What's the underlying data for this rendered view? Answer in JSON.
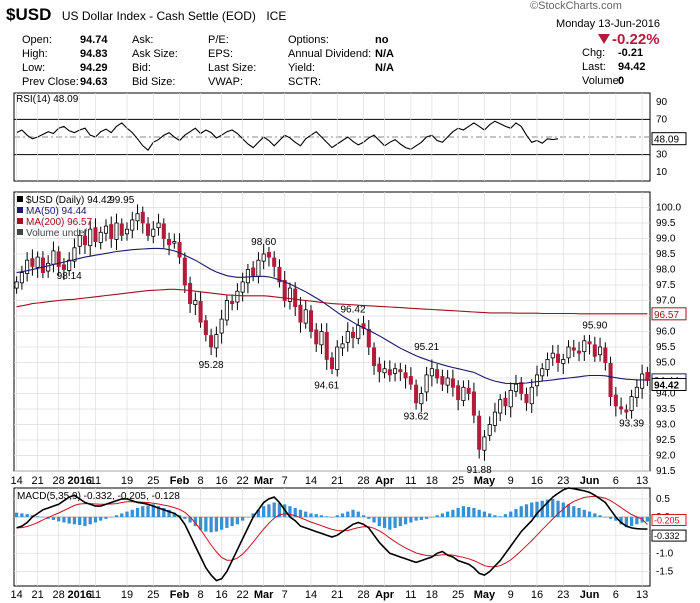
{
  "watermark": "©StockCharts.com",
  "header": {
    "ticker": "$USD",
    "description": "US Dollar Index - Cash Settle (EOD)",
    "exchange": "ICE",
    "date": "Monday  13-Jun-2016",
    "change_pct": "-0.22%",
    "quote": [
      {
        "label": "Open:",
        "value": "94.74"
      },
      {
        "label": "High:",
        "value": "94.83"
      },
      {
        "label": "Low:",
        "value": "94.29"
      },
      {
        "label": "Prev Close:",
        "value": "94.63"
      },
      {
        "label": "Ask:",
        "value": ""
      },
      {
        "label": "Ask Size:",
        "value": ""
      },
      {
        "label": "Bid:",
        "value": ""
      },
      {
        "label": "Bid Size:",
        "value": ""
      },
      {
        "label": "P/E:",
        "value": ""
      },
      {
        "label": "EPS:",
        "value": ""
      },
      {
        "label": "Last Size:",
        "value": ""
      },
      {
        "label": "VWAP:",
        "value": ""
      },
      {
        "label": "Options:",
        "value": "no"
      },
      {
        "label": "Annual Dividend:",
        "value": "N/A"
      },
      {
        "label": "Yield:",
        "value": "N/A"
      },
      {
        "label": "SCTR:",
        "value": ""
      },
      {
        "label": "Chg:",
        "value": "-0.21"
      },
      {
        "label": "Last:",
        "value": "94.42"
      },
      {
        "label": "Volume:",
        "value": "0"
      }
    ]
  },
  "colors": {
    "up": "#ffffff",
    "down": "#b11c3a",
    "ma50": "#1a1a6e",
    "ma200": "#a01020",
    "rsi": "#000000",
    "macd": "#000000",
    "signal": "#d01020",
    "hist": "#3a8fd0",
    "grid": "#dddddd",
    "dark": "#000000"
  },
  "chart_data": [
    {
      "type": "line",
      "title": "RSI(14) 48.09",
      "y_ticks": [
        90,
        70,
        50,
        30,
        10
      ],
      "ylim": [
        0,
        100
      ],
      "last_label": "48.09",
      "values": [
        55,
        58,
        52,
        48,
        50,
        53,
        56,
        54,
        60,
        62,
        57,
        55,
        58,
        60,
        52,
        50,
        56,
        59,
        55,
        62,
        66,
        60,
        55,
        48,
        40,
        35,
        44,
        47,
        52,
        55,
        50,
        46,
        52,
        56,
        60,
        54,
        58,
        55,
        49,
        52,
        56,
        58,
        54,
        48,
        42,
        38,
        44,
        50,
        46,
        40,
        46,
        52,
        49,
        44,
        40,
        48,
        52,
        56,
        50,
        44,
        38,
        42,
        46,
        50,
        45,
        41,
        44,
        49,
        52,
        46,
        40,
        44,
        47,
        42,
        38,
        36,
        40,
        44,
        50,
        52,
        46,
        44,
        50,
        56,
        60,
        58,
        62,
        66,
        62,
        58,
        64,
        68,
        65,
        62,
        60,
        66,
        62,
        52,
        44,
        46,
        43,
        48,
        47,
        48
      ]
    },
    {
      "type": "candlestick",
      "legend": [
        "$USD (Daily) 94.42",
        "MA(50) 94.44",
        "MA(200) 96.57",
        "Volume undef"
      ],
      "ylim": [
        91.5,
        100.5
      ],
      "y_ticks": [
        100.0,
        99.5,
        99.0,
        98.5,
        98.0,
        97.5,
        97.0,
        96.5,
        96.0,
        95.5,
        95.0,
        94.5,
        94.0,
        93.5,
        93.0,
        92.5,
        92.0,
        91.5
      ],
      "x_ticks": [
        "14",
        "21",
        "28",
        "2016",
        "11",
        "19",
        "25",
        "Feb",
        "8",
        "16",
        "22",
        "Mar",
        "7",
        "14",
        "21",
        "28",
        "Apr",
        "11",
        "18",
        "25",
        "May",
        "9",
        "16",
        "23",
        "Jun",
        "6",
        "13"
      ],
      "closes": [
        97.6,
        97.9,
        98.3,
        98.1,
        98.4,
        97.9,
        98.2,
        98.6,
        98.1,
        98.0,
        98.3,
        98.7,
        99.1,
        98.8,
        99.3,
        98.9,
        99.2,
        99.4,
        99.0,
        99.5,
        99.1,
        99.3,
        99.6,
        99.8,
        99.5,
        99.1,
        99.3,
        99.5,
        99.0,
        98.8,
        98.9,
        98.4,
        97.5,
        96.9,
        97.0,
        96.3,
        95.9,
        95.5,
        95.9,
        96.4,
        97.0,
        96.9,
        97.3,
        97.6,
        98.0,
        97.8,
        98.3,
        98.5,
        98.4,
        98.1,
        97.6,
        97.0,
        97.4,
        96.8,
        96.3,
        96.7,
        96.0,
        95.6,
        96.0,
        95.1,
        94.8,
        95.5,
        95.6,
        96.0,
        95.8,
        96.2,
        96.1,
        95.5,
        94.9,
        94.7,
        94.8,
        94.6,
        94.8,
        94.7,
        94.5,
        94.3,
        93.7,
        94.0,
        94.6,
        94.8,
        94.5,
        94.3,
        94.5,
        94.2,
        93.8,
        94.2,
        94.0,
        93.3,
        92.2,
        92.6,
        93.0,
        93.4,
        93.8,
        93.6,
        94.1,
        94.3,
        94.0,
        93.7,
        94.2,
        94.6,
        94.8,
        95.1,
        95.3,
        95.0,
        95.1,
        95.5,
        95.4,
        95.3,
        95.7,
        95.6,
        95.2,
        95.5,
        95.0,
        93.9,
        93.6,
        93.5,
        93.4,
        93.9,
        94.2,
        94.63,
        94.42
      ],
      "ma50": [
        97.9,
        97.93,
        97.96,
        98.0,
        98.04,
        98.08,
        98.12,
        98.16,
        98.2,
        98.24,
        98.28,
        98.32,
        98.36,
        98.4,
        98.43,
        98.46,
        98.49,
        98.52,
        98.55,
        98.58,
        98.6,
        98.62,
        98.64,
        98.65,
        98.66,
        98.67,
        98.68,
        98.68,
        98.67,
        98.64,
        98.6,
        98.54,
        98.46,
        98.38,
        98.3,
        98.2,
        98.1,
        98.0,
        97.92,
        97.86,
        97.8,
        97.77,
        97.75,
        97.75,
        97.76,
        97.77,
        97.78,
        97.78,
        97.76,
        97.72,
        97.66,
        97.6,
        97.53,
        97.45,
        97.36,
        97.28,
        97.18,
        97.08,
        96.98,
        96.86,
        96.74,
        96.62,
        96.5,
        96.4,
        96.3,
        96.2,
        96.12,
        96.04,
        95.95,
        95.86,
        95.76,
        95.66,
        95.56,
        95.46,
        95.38,
        95.3,
        95.22,
        95.15,
        95.09,
        95.03,
        94.98,
        94.93,
        94.88,
        94.84,
        94.8,
        94.76,
        94.72,
        94.68,
        94.6,
        94.52,
        94.45,
        94.4,
        94.36,
        94.33,
        94.32,
        94.32,
        94.33,
        94.34,
        94.36,
        94.38,
        94.4,
        94.42,
        94.44,
        94.46,
        94.48,
        94.5,
        94.52,
        94.54,
        94.56,
        94.58,
        94.58,
        94.58,
        94.57,
        94.54,
        94.51,
        94.48,
        94.46,
        94.45,
        94.44,
        94.44,
        94.44
      ],
      "ma200": [
        96.8,
        96.83,
        96.86,
        96.9,
        96.92,
        96.94,
        96.96,
        96.98,
        97.0,
        97.02,
        97.03,
        97.04,
        97.06,
        97.08,
        97.1,
        97.12,
        97.14,
        97.16,
        97.18,
        97.2,
        97.22,
        97.24,
        97.26,
        97.28,
        97.3,
        97.32,
        97.33,
        97.34,
        97.35,
        97.36,
        97.36,
        97.35,
        97.34,
        97.32,
        97.3,
        97.28,
        97.26,
        97.24,
        97.22,
        97.2,
        97.18,
        97.17,
        97.16,
        97.15,
        97.15,
        97.15,
        97.15,
        97.15,
        97.14,
        97.12,
        97.1,
        97.08,
        97.06,
        97.04,
        97.02,
        97.0,
        96.98,
        96.96,
        96.94,
        96.92,
        96.9,
        96.89,
        96.88,
        96.87,
        96.86,
        96.85,
        96.84,
        96.83,
        96.82,
        96.81,
        96.8,
        96.79,
        96.78,
        96.77,
        96.76,
        96.75,
        96.74,
        96.73,
        96.72,
        96.71,
        96.7,
        96.69,
        96.68,
        96.67,
        96.66,
        96.65,
        96.64,
        96.63,
        96.62,
        96.61,
        96.6,
        96.6,
        96.6,
        96.6,
        96.6,
        96.59,
        96.59,
        96.59,
        96.59,
        96.59,
        96.58,
        96.58,
        96.58,
        96.58,
        96.58,
        96.58,
        96.58,
        96.57,
        96.57,
        96.57,
        96.57,
        96.57,
        96.57,
        96.57,
        96.57,
        96.57,
        96.57,
        96.57,
        96.57,
        96.57,
        96.57
      ],
      "price_labels": [
        {
          "text": "99.95",
          "i": 20,
          "value": 99.95,
          "pos": "above"
        },
        {
          "text": "98.14",
          "i": 10,
          "value": 98.14,
          "pos": "below"
        },
        {
          "text": "98.60",
          "i": 47,
          "value": 98.6,
          "pos": "above"
        },
        {
          "text": "95.28",
          "i": 37,
          "value": 95.28,
          "pos": "below"
        },
        {
          "text": "96.42",
          "i": 64,
          "value": 96.42,
          "pos": "above"
        },
        {
          "text": "94.61",
          "i": 59,
          "value": 94.61,
          "pos": "below"
        },
        {
          "text": "95.21",
          "i": 78,
          "value": 95.21,
          "pos": "above"
        },
        {
          "text": "93.62",
          "i": 76,
          "value": 93.62,
          "pos": "below"
        },
        {
          "text": "91.88",
          "i": 88,
          "value": 91.88,
          "pos": "below"
        },
        {
          "text": "95.90",
          "i": 110,
          "value": 95.9,
          "pos": "above"
        },
        {
          "text": "93.39",
          "i": 117,
          "value": 93.39,
          "pos": "below"
        }
      ],
      "last_labels": [
        "96.57",
        "94.44",
        "94.42"
      ]
    },
    {
      "type": "macd",
      "legend": "MACD(5,35,9) -0.332, -0.205, -0.128",
      "ylim": [
        -1.9,
        0.8
      ],
      "y_ticks": [
        0.5,
        0.0,
        -0.5,
        -1.0,
        -1.5
      ],
      "last_labels": [
        "-0.205",
        "-0.332"
      ],
      "macd": [
        -0.3,
        -0.25,
        -0.15,
        0.0,
        0.1,
        0.2,
        0.25,
        0.3,
        0.35,
        0.45,
        0.55,
        0.6,
        0.5,
        0.4,
        0.35,
        0.3,
        0.3,
        0.35,
        0.4,
        0.45,
        0.5,
        0.5,
        0.45,
        0.4,
        0.38,
        0.35,
        0.3,
        0.25,
        0.2,
        0.15,
        0.1,
        0.0,
        -0.2,
        -0.5,
        -0.8,
        -1.1,
        -1.4,
        -1.6,
        -1.75,
        -1.7,
        -1.5,
        -1.2,
        -0.9,
        -0.6,
        -0.3,
        0.0,
        0.2,
        0.4,
        0.5,
        0.55,
        0.4,
        0.2,
        0.0,
        -0.1,
        -0.25,
        -0.3,
        -0.35,
        -0.4,
        -0.45,
        -0.5,
        -0.55,
        -0.5,
        -0.4,
        -0.3,
        -0.2,
        -0.15,
        -0.2,
        -0.3,
        -0.5,
        -0.7,
        -0.85,
        -1.0,
        -1.05,
        -1.1,
        -1.15,
        -1.2,
        -1.25,
        -1.2,
        -1.15,
        -1.1,
        -1.0,
        -0.95,
        -1.05,
        -1.1,
        -1.2,
        -1.25,
        -1.3,
        -1.4,
        -1.55,
        -1.6,
        -1.5,
        -1.35,
        -1.2,
        -1.0,
        -0.8,
        -0.6,
        -0.4,
        -0.25,
        -0.1,
        0.1,
        0.25,
        0.4,
        0.55,
        0.65,
        0.75,
        0.8,
        0.78,
        0.75,
        0.72,
        0.68,
        0.6,
        0.5,
        0.4,
        0.2,
        0.0,
        -0.15,
        -0.25,
        -0.3,
        -0.32,
        -0.33,
        -0.332
      ],
      "signal": [
        -0.3,
        -0.29,
        -0.26,
        -0.21,
        -0.15,
        -0.08,
        -0.01,
        0.05,
        0.11,
        0.18,
        0.25,
        0.32,
        0.36,
        0.37,
        0.37,
        0.36,
        0.35,
        0.35,
        0.36,
        0.37,
        0.4,
        0.42,
        0.42,
        0.42,
        0.41,
        0.4,
        0.38,
        0.36,
        0.33,
        0.3,
        0.26,
        0.21,
        0.13,
        0.0,
        -0.16,
        -0.35,
        -0.56,
        -0.77,
        -0.96,
        -1.11,
        -1.19,
        -1.19,
        -1.13,
        -1.02,
        -0.87,
        -0.69,
        -0.51,
        -0.33,
        -0.17,
        -0.03,
        0.06,
        0.09,
        0.07,
        0.04,
        -0.02,
        -0.08,
        -0.14,
        -0.19,
        -0.24,
        -0.29,
        -0.34,
        -0.37,
        -0.38,
        -0.37,
        -0.33,
        -0.29,
        -0.27,
        -0.27,
        -0.31,
        -0.38,
        -0.47,
        -0.58,
        -0.68,
        -0.77,
        -0.85,
        -0.92,
        -0.99,
        -1.03,
        -1.06,
        -1.07,
        -1.06,
        -1.04,
        -1.04,
        -1.05,
        -1.08,
        -1.11,
        -1.15,
        -1.2,
        -1.27,
        -1.34,
        -1.37,
        -1.37,
        -1.34,
        -1.27,
        -1.18,
        -1.06,
        -0.93,
        -0.79,
        -0.65,
        -0.5,
        -0.35,
        -0.2,
        -0.05,
        0.09,
        0.22,
        0.34,
        0.43,
        0.49,
        0.54,
        0.56,
        0.57,
        0.55,
        0.52,
        0.45,
        0.36,
        0.26,
        0.16,
        0.07,
        0.0,
        -0.06,
        -0.205
      ],
      "hist": [
        0.12,
        0.1,
        0.08,
        0.05,
        0.02,
        0.0,
        -0.05,
        -0.08,
        -0.12,
        -0.15,
        -0.18,
        -0.2,
        -0.22,
        -0.25,
        -0.2,
        -0.15,
        -0.1,
        -0.05,
        0.0,
        0.05,
        0.1,
        0.15,
        0.2,
        0.25,
        0.3,
        0.32,
        0.35,
        0.3,
        0.25,
        0.2,
        0.12,
        0.05,
        -0.05,
        -0.15,
        -0.25,
        -0.35,
        -0.4,
        -0.42,
        -0.4,
        -0.35,
        -0.3,
        -0.25,
        -0.2,
        -0.1,
        0.0,
        0.1,
        0.2,
        0.3,
        0.35,
        0.4,
        0.38,
        0.35,
        0.3,
        0.25,
        0.2,
        0.15,
        0.1,
        0.08,
        0.05,
        0.02,
        0.0,
        0.05,
        0.1,
        0.15,
        0.2,
        0.15,
        0.05,
        -0.05,
        -0.15,
        -0.25,
        -0.3,
        -0.35,
        -0.3,
        -0.25,
        -0.2,
        -0.15,
        -0.1,
        -0.08,
        -0.05,
        0.0,
        0.05,
        0.1,
        0.15,
        0.2,
        0.25,
        0.3,
        0.28,
        0.25,
        0.2,
        0.15,
        0.1,
        0.05,
        0.02,
        0.08,
        0.15,
        0.22,
        0.3,
        0.35,
        0.4,
        0.42,
        0.45,
        0.48,
        0.5,
        0.45,
        0.4,
        0.35,
        0.3,
        0.25,
        0.2,
        0.15,
        0.1,
        0.05,
        0.0,
        -0.05,
        -0.1,
        -0.2,
        -0.28,
        -0.25,
        -0.2,
        -0.15,
        -0.128
      ]
    }
  ]
}
